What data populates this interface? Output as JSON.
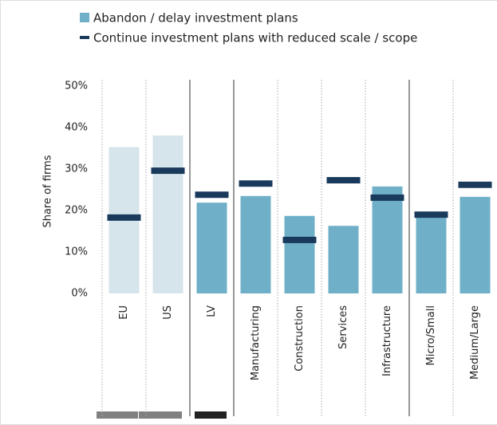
{
  "chart_data": {
    "type": "bar",
    "y_label": "Share of firms",
    "categories": [
      "EU",
      "US",
      "LV",
      "Manufacturing",
      "Construction",
      "Services",
      "Infrastructure",
      "Micro/Small",
      "Medium/Large"
    ],
    "series": [
      {
        "name": "Abandon / delay investment plans",
        "color": "#6fb0c8",
        "bar_colors": [
          "#d6e5ec",
          "#d6e5ec",
          "#6fb0c8",
          "#6fb0c8",
          "#6fb0c8",
          "#6fb0c8",
          "#6fb0c8",
          "#6fb0c8",
          "#6fb0c8"
        ],
        "values": [
          35.3,
          38.1,
          21.9,
          23.5,
          18.7,
          16.3,
          25.8,
          19.2,
          23.3
        ]
      },
      {
        "name": "Continue investment plans with reduced scale / scope",
        "color": "#1a3a5c",
        "marker": "dash",
        "values": [
          18.3,
          29.6,
          23.8,
          26.5,
          12.9,
          27.3,
          23.1,
          19.0,
          26.2
        ]
      }
    ],
    "ylim": [
      0,
      50
    ],
    "yticks": [
      {
        "value": 0,
        "label": "0%"
      },
      {
        "value": 10,
        "label": "10%"
      },
      {
        "value": 20,
        "label": "20%"
      },
      {
        "value": 30,
        "label": "30%"
      },
      {
        "value": 40,
        "label": "40%"
      },
      {
        "value": 50,
        "label": "50%"
      }
    ],
    "grid": false,
    "legend": "top"
  }
}
